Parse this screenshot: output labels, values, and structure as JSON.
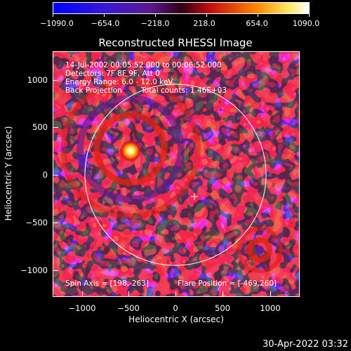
{
  "colorbar": {
    "ticks": [
      "−1090.0",
      "−654.0",
      "−218.0",
      "218.0",
      "654.0",
      "1090.0"
    ],
    "range": [
      -1090,
      1090
    ]
  },
  "title": "Reconstructed RHESSI Image",
  "info": {
    "time": "14-Jul-2002 00:05:52.000 to 00:06:52.000",
    "detectors": "Detectors: 7F 8F 9F, Att 0",
    "energy": "Energy Range: 6.0 - 12.0 keV",
    "method": "Back Projection",
    "counts": "Total counts: 1.46E+03",
    "spin_axis": "Spin Axis = [198,-263]",
    "flare_position": "Flare Position = [-469,260]"
  },
  "axes": {
    "xlabel": "Heliocentric X (arcsec)",
    "ylabel": "Heliocentric Y (arcsec)",
    "xticks": [
      "−1000",
      "−500",
      "0",
      "500",
      "1000"
    ],
    "yticks": [
      "1000",
      "500",
      "0",
      "−500",
      "−1000"
    ],
    "xlim": [
      -1300,
      1300
    ],
    "ylim": [
      -1300,
      1300
    ]
  },
  "footer": "30-Apr-2022 03:32",
  "colors": {
    "background": "#000000",
    "limb": "#ffffff"
  },
  "icons": {
    "spin_axis_marker": "plus-icon"
  }
}
